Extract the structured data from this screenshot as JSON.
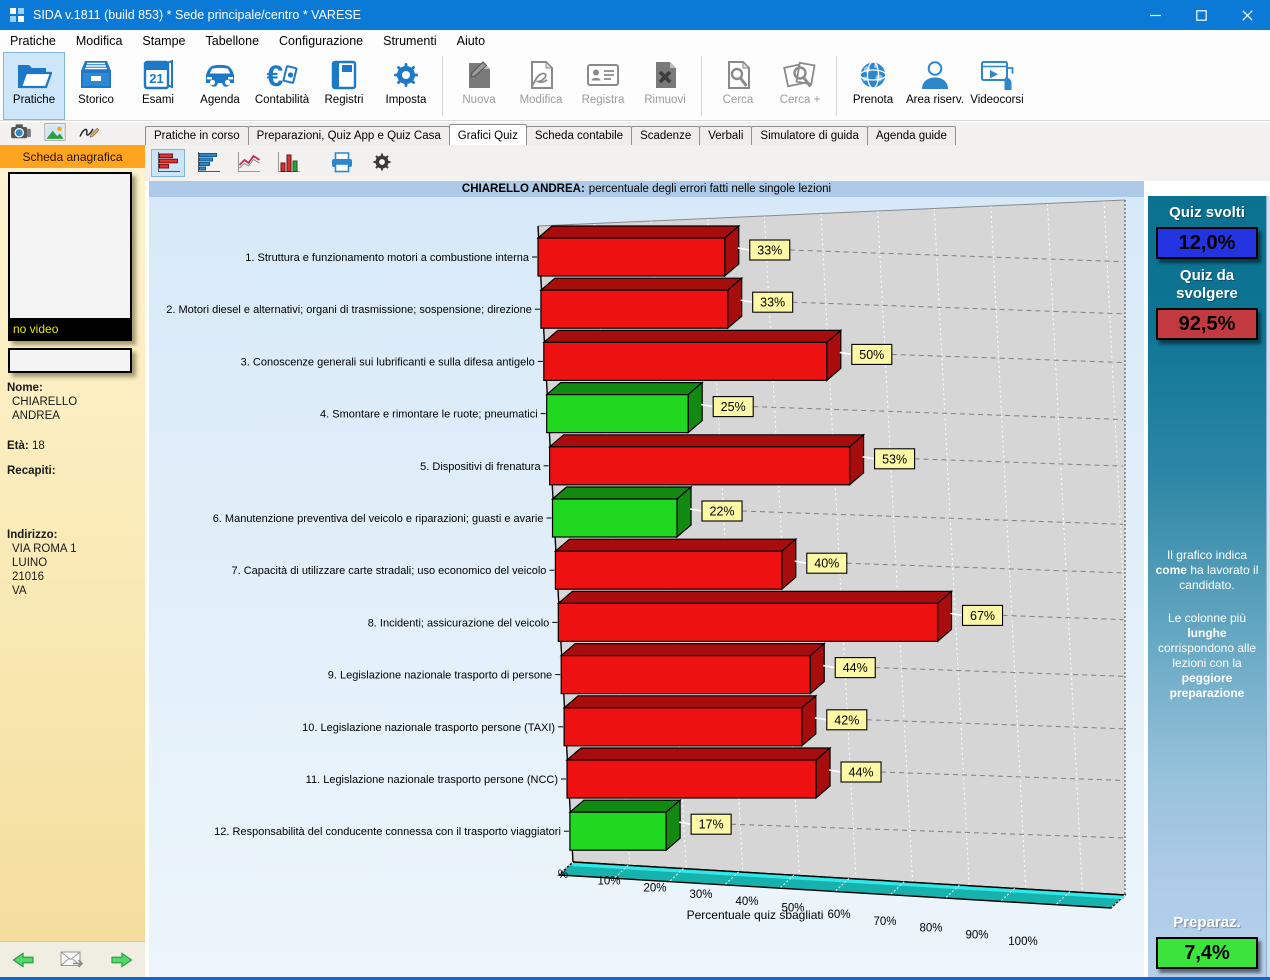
{
  "window": {
    "title": "SIDA v.1811 (build 853) * Sede principale/centro * VARESE",
    "accent_color": "#0b7ad6"
  },
  "menu_bar": {
    "items": [
      "Pratiche",
      "Modifica",
      "Stampe",
      "Tabellone",
      "Configurazione",
      "Strumenti",
      "Aiuto"
    ]
  },
  "toolbar": {
    "items": [
      {
        "label": "Pratiche",
        "icon": "folder",
        "active": true
      },
      {
        "label": "Storico",
        "icon": "archive"
      },
      {
        "label": "Esami",
        "icon": "calendar"
      },
      {
        "label": "Agenda",
        "icon": "car"
      },
      {
        "label": "Contabilità",
        "icon": "euro"
      },
      {
        "label": "Registri",
        "icon": "book"
      },
      {
        "label": "Imposta",
        "icon": "gear",
        "sep_after": true
      },
      {
        "label": "Nuova",
        "icon": "page-new",
        "state": "disabled"
      },
      {
        "label": "Modifica",
        "icon": "page-edit",
        "state": "disabled"
      },
      {
        "label": "Registra",
        "icon": "id-card",
        "state": "disabled"
      },
      {
        "label": "Rimuovi",
        "icon": "page-x",
        "state": "disabled",
        "sep_after": true
      },
      {
        "label": "Cerca",
        "icon": "page-search",
        "state": "disabled"
      },
      {
        "label": "Cerca +",
        "icon": "pages-search",
        "state": "disabled",
        "sep_after": true
      },
      {
        "label": "Prenota",
        "icon": "globe"
      },
      {
        "label": "Area riserv.",
        "icon": "user"
      },
      {
        "label": "Videocorsi",
        "icon": "video"
      }
    ]
  },
  "tabs": {
    "items": [
      {
        "label": "Pratiche in corso"
      },
      {
        "label": "Preparazioni, Quiz App e Quiz Casa"
      },
      {
        "label": "Grafici Quiz",
        "active": true
      },
      {
        "label": "Scheda contabile"
      },
      {
        "label": "Scadenze"
      },
      {
        "label": "Verbali"
      },
      {
        "label": "Simulatore di guida"
      },
      {
        "label": "Agenda guide"
      }
    ]
  },
  "chart_toolbar": {
    "items": [
      {
        "icon": "chart-hbar",
        "selected": true
      },
      {
        "icon": "chart-hbar-blue"
      },
      {
        "icon": "chart-line"
      },
      {
        "icon": "chart-vbar"
      },
      {
        "icon": "print",
        "wide": true
      },
      {
        "icon": "gear-dark"
      }
    ]
  },
  "sidebar": {
    "header": "Scheda anagrafica",
    "photo_caption": "no video",
    "fields": {
      "nome_label": "Nome:",
      "nome_lines": [
        "CHIARELLO",
        "ANDREA"
      ],
      "eta_label": "Età:",
      "eta_value": "18",
      "recapiti_label": "Recapiti:",
      "indirizzo_label": "Indirizzo:",
      "indirizzo_lines": [
        "VIA ROMA 1",
        "LUINO",
        "21016",
        "VA"
      ]
    }
  },
  "right_panel": {
    "quiz_svolti_label": "Quiz svolti",
    "quiz_svolti_value": "12,0%",
    "quiz_da_svolgere_label": "Quiz da svolgere",
    "quiz_da_svolgere_value": "92,5%",
    "preparaz_label": "Preparaz.",
    "preparaz_value": "7,4%",
    "info_paragraphs": [
      [
        [
          "Il grafico indica ",
          false
        ],
        [
          "come",
          true
        ],
        [
          " ha lavorato il candidato.",
          false
        ]
      ],
      [
        [
          "Le colonne più ",
          false
        ],
        [
          "lunghe",
          true
        ],
        [
          " corrispondono alle lezioni con la ",
          false
        ],
        [
          "peggiore preparazione",
          true
        ]
      ]
    ],
    "colors": {
      "svolti_box": "#2333e0",
      "da_svolgere_box": "#c23a3f",
      "preparaz_box": "#3ae43a",
      "panel_top": "#0b7191",
      "panel_bottom": "#b5d0ea"
    }
  },
  "chart_data": {
    "type": "bar",
    "orientation": "horizontal-3d",
    "title_bold": "CHIARELLO ANDREA:",
    "title_rest": "percentuale degli errori fatti nelle singole lezioni",
    "xlabel": "Percentuale quiz sbagliati",
    "x_ticks": [
      "%",
      "10%",
      "20%",
      "30%",
      "40%",
      "50%",
      "60%",
      "70%",
      "80%",
      "90%",
      "100%"
    ],
    "xlim": [
      0,
      100
    ],
    "grid": true,
    "categories": [
      "1. Struttura e funzionamento motori a combustione interna",
      "2. Motori diesel e alternativi; organi di trasmissione; sospensione; direzione",
      "3. Conoscenze generali sui lubrificanti e sulla difesa antigelo",
      "4. Smontare e rimontare le ruote; pneumatici",
      "5. Dispositivi di frenatura",
      "6. Manutenzione preventiva del veicolo e riparazioni; guasti e avarie",
      "7. Capacità di utilizzare carte stradali; uso economico del veicolo",
      "8. Incidenti; assicurazione del veicolo",
      "9. Legislazione nazionale trasporto di persone",
      "10. Legislazione nazionale trasporto persone (TAXI)",
      "11. Legislazione nazionale trasporto persone (NCC)",
      "12. Responsabilità del conducente connessa con il trasporto viaggiatori"
    ],
    "values": [
      33,
      33,
      50,
      25,
      53,
      22,
      40,
      67,
      44,
      42,
      44,
      17
    ],
    "value_labels": [
      "33%",
      "33%",
      "50%",
      "25%",
      "53%",
      "22%",
      "40%",
      "67%",
      "44%",
      "42%",
      "44%",
      "17%"
    ],
    "bar_states": [
      "bad",
      "bad",
      "bad",
      "good",
      "bad",
      "good",
      "bad",
      "bad",
      "bad",
      "bad",
      "bad",
      "good"
    ],
    "palette": {
      "bad_front": "#ee1111",
      "bad_dark": "#a80d0d",
      "good_front": "#1fd81f",
      "good_dark": "#128a12",
      "wall": "#d6d6d6",
      "floor": "#18b2ae",
      "floor_edge": "#2fe9e9",
      "label_bg": "#fdf8a6",
      "bg_top": "#d7e9f8",
      "bg_bottom": "#edf5fb"
    }
  }
}
